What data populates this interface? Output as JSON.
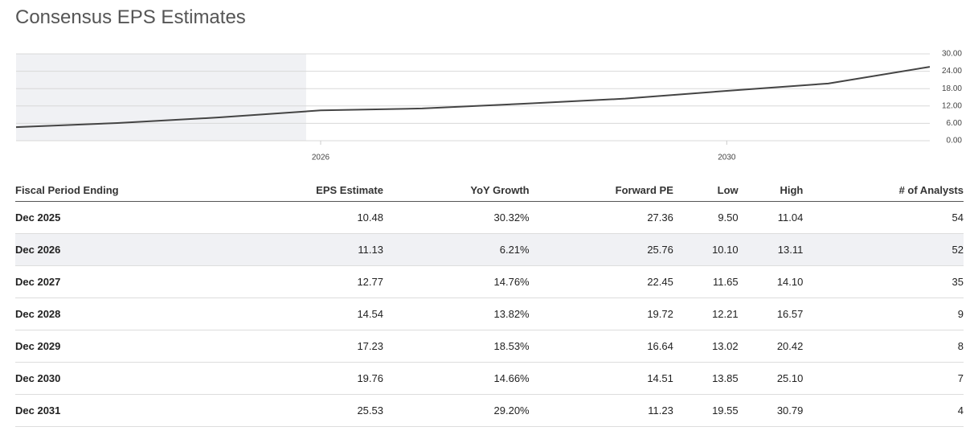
{
  "header": {
    "title": "Consensus EPS Estimates"
  },
  "chart_data": {
    "type": "line",
    "x": [
      2023,
      2024,
      2025,
      2026,
      2027,
      2028,
      2029,
      2030,
      2031,
      2032
    ],
    "values": [
      4.7,
      6.1,
      8.04,
      10.48,
      11.13,
      12.77,
      14.54,
      17.23,
      19.76,
      25.53
    ],
    "color": "#444444",
    "xlim": [
      2023,
      2032
    ],
    "xticks": [
      2026,
      2030
    ],
    "ylim": [
      0,
      30
    ],
    "yticks": [
      {
        "value": 0,
        "label": "0.00"
      },
      {
        "value": 6,
        "label": "6.00"
      },
      {
        "value": 12,
        "label": "12.00"
      },
      {
        "value": 18,
        "label": "18.00"
      },
      {
        "value": 24,
        "label": "24.00"
      },
      {
        "value": 30,
        "label": "30.00"
      }
    ],
    "grid": true
  },
  "table": {
    "columns": [
      "Fiscal Period Ending",
      "EPS Estimate",
      "YoY Growth",
      "Forward PE",
      "Low",
      "High",
      "# of Analysts"
    ],
    "rows": [
      [
        "Dec 2025",
        "10.48",
        "30.32%",
        "27.36",
        "9.50",
        "11.04",
        "54"
      ],
      [
        "Dec 2026",
        "11.13",
        "6.21%",
        "25.76",
        "10.10",
        "13.11",
        "52"
      ],
      [
        "Dec 2027",
        "12.77",
        "14.76%",
        "22.45",
        "11.65",
        "14.10",
        "35"
      ],
      [
        "Dec 2028",
        "14.54",
        "13.82%",
        "19.72",
        "12.21",
        "16.57",
        "9"
      ],
      [
        "Dec 2029",
        "17.23",
        "18.53%",
        "16.64",
        "13.02",
        "20.42",
        "8"
      ],
      [
        "Dec 2030",
        "19.76",
        "14.66%",
        "14.51",
        "13.85",
        "25.10",
        "7"
      ],
      [
        "Dec 2031",
        "25.53",
        "29.20%",
        "11.23",
        "19.55",
        "30.79",
        "4"
      ]
    ]
  }
}
